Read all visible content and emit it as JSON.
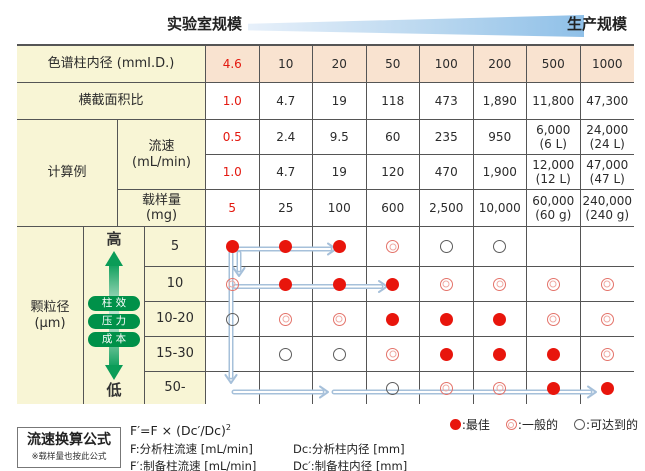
{
  "header": {
    "lab_scale": "实验室规模",
    "prod_scale": "生产规模"
  },
  "table": {
    "id_label": "色谱柱内径 (mmI.D.)",
    "id_values": [
      "4.6",
      "10",
      "20",
      "50",
      "100",
      "200",
      "500",
      "1000"
    ],
    "area_label": "横截面积比",
    "area_values": [
      "1.0",
      "4.7",
      "19",
      "118",
      "473",
      "1,890",
      "11,800",
      "47,300"
    ],
    "calc_label": "计算例",
    "flow_label": "流速\n(mL/min)",
    "flow_row1": [
      "0.5",
      "2.4",
      "9.5",
      "60",
      "235",
      "950",
      "6,000\n(6 L)",
      "24,000\n(24 L)"
    ],
    "flow_row2": [
      "1.0",
      "4.7",
      "19",
      "120",
      "470",
      "1,900",
      "12,000\n(12 L)",
      "47,000\n(47 L)"
    ],
    "load_label": "载样量\n(mg)",
    "load_values": [
      "5",
      "25",
      "100",
      "600",
      "2,500",
      "10,000",
      "60,000\n(60 g)",
      "240,000\n(240 g)"
    ]
  },
  "particle": {
    "label": "颗粒径\n(μm)",
    "high": "高",
    "low": "低",
    "pills": [
      "柱 效",
      "压 力",
      "成 本"
    ],
    "sizes": [
      "5",
      "10",
      "10-20",
      "15-30",
      "50-"
    ]
  },
  "matrix": {
    "rows": [
      [
        "best",
        "best",
        "best",
        "good",
        "ok",
        "ok",
        "",
        ""
      ],
      [
        "good",
        "best",
        "best",
        "best",
        "good",
        "good",
        "good",
        "good"
      ],
      [
        "ok",
        "good",
        "good",
        "best",
        "best",
        "best",
        "good",
        "good"
      ],
      [
        "",
        "ok",
        "ok",
        "good",
        "best",
        "best",
        "best",
        "good"
      ],
      [
        "",
        "",
        "",
        "ok",
        "good",
        "good",
        "best",
        "best"
      ]
    ]
  },
  "legend": [
    {
      "mark": "best",
      "text": ":最佳"
    },
    {
      "mark": "good",
      "text": ":一般的"
    },
    {
      "mark": "ok",
      "text": ":可达到的"
    }
  ],
  "formula": {
    "box_title": "流速换算公式",
    "box_note": "※载样量也按此公式",
    "main": "F′=F × (Dc′/Dc)",
    "main_sup": "2",
    "lines_left": [
      "F:分析柱流速 [mL/min]",
      "F′:制备柱流速 [mL/min]"
    ],
    "lines_right": [
      "Dc:分析柱内径 [mm]",
      "Dc′:制备柱内径 [mm]"
    ]
  },
  "colors": {
    "accent_red": "#e8150c",
    "label_yellow": "#f8f5d5",
    "row_peach": "#f9e3d0",
    "green": "#009149",
    "arrow_blue": "#a6c0da"
  }
}
